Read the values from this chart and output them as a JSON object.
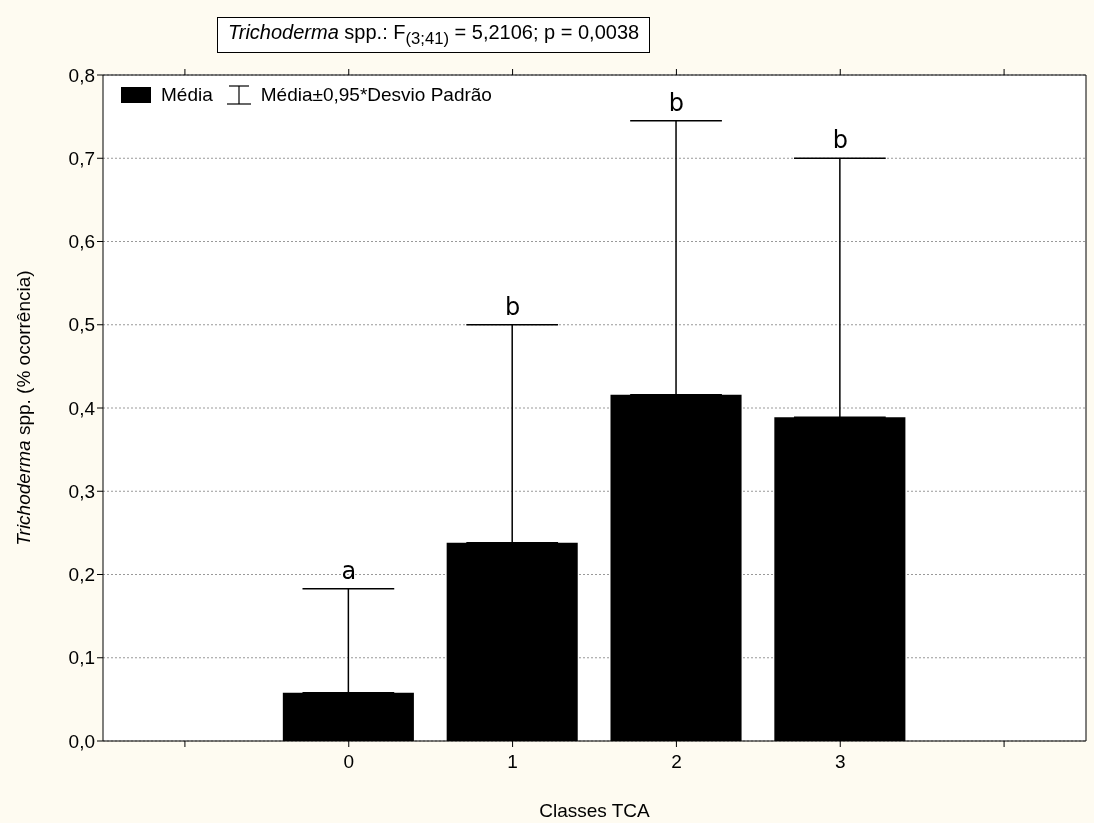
{
  "chart_data": {
    "type": "bar",
    "title": "Trichoderma spp.:   F$_{(3;41)}$ = 5,2106; p = 0,0038",
    "xlabel": "Classes TCA",
    "ylabel": "Trichoderma spp. (% ocorrência)",
    "categories": [
      "0",
      "1",
      "2",
      "3"
    ],
    "series": [
      {
        "name": "Média",
        "color": "#000000",
        "values": [
          0.058,
          0.238,
          0.416,
          0.389
        ],
        "errors": [
          [
            0.058,
            0.183
          ],
          [
            0.238,
            0.5
          ],
          [
            0.416,
            0.745
          ],
          [
            0.389,
            0.7
          ]
        ]
      }
    ],
    "ylim": [
      0,
      0.8
    ],
    "yticks": [
      {
        "value": 0,
        "label": "0,0"
      },
      {
        "value": 0.1,
        "label": "0,1"
      },
      {
        "value": 0.2,
        "label": "0,2"
      },
      {
        "value": 0.3,
        "label": "0,3"
      },
      {
        "value": 0.4,
        "label": "0,4"
      },
      {
        "value": 0.5,
        "label": "0,5"
      },
      {
        "value": 0.6,
        "label": "0,6"
      },
      {
        "value": 0.7,
        "label": "0,7"
      },
      {
        "value": 0.8,
        "label": "0,8"
      }
    ],
    "grid": "y",
    "legend": "top left",
    "annotations": [
      "Média±0,95*Desvio Padrão",
      {
        "text": "a",
        "x": "0",
        "y": 0.183
      },
      {
        "text": "b",
        "x": "1",
        "y": 0.5
      },
      {
        "text": "b",
        "x": "2",
        "y": 0.745
      },
      {
        "text": "b",
        "x": "3",
        "y": 0.7
      }
    ]
  }
}
